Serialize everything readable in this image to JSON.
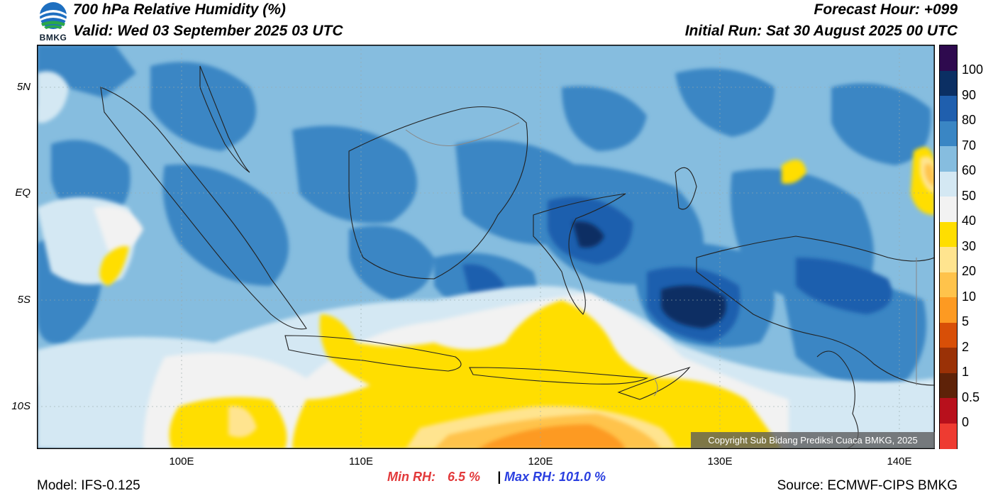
{
  "header": {
    "title": "700 hPa Relative Humidity (%)",
    "valid": "Valid: Wed 03 September 2025 03 UTC",
    "forecast_hour": "Forecast Hour: +099",
    "initial_run": "Initial Run: Sat 30 August 2025 00 UTC"
  },
  "logo": {
    "text": "BMKG",
    "icon": "bmkg-logo"
  },
  "axes": {
    "lat_ticks": [
      "5N",
      "EQ",
      "5S",
      "10S"
    ],
    "lon_ticks": [
      "100E",
      "110E",
      "120E",
      "130E",
      "140E"
    ]
  },
  "colorbar": {
    "labels": [
      "100",
      "90",
      "80",
      "70",
      "60",
      "50",
      "40",
      "30",
      "20",
      "10",
      "5",
      "2",
      "1",
      "0.5",
      "0"
    ],
    "colors": [
      "#2e0a4e",
      "#0b2f63",
      "#1f5fae",
      "#3a86c4",
      "#86bddf",
      "#d4e8f3",
      "#f2f2f2",
      "#ffde00",
      "#ffe48f",
      "#ffc34b",
      "#fd9a22",
      "#d84f07",
      "#9a3106",
      "#5e2208",
      "#b8101c",
      "#ee3b31"
    ]
  },
  "copyright": "Copyright Sub Bidang Prediksi Cuaca BMKG, 2025",
  "footer": {
    "model": "Model: IFS-0.125",
    "min_label": "Min RH:",
    "min_value": "6.5 %",
    "separator": "|",
    "max_text": "Max RH: 101.0 %",
    "source": "Source: ECMWF-CIPS BMKG",
    "min_color": "#e2393a",
    "max_color": "#2a3fe0"
  }
}
